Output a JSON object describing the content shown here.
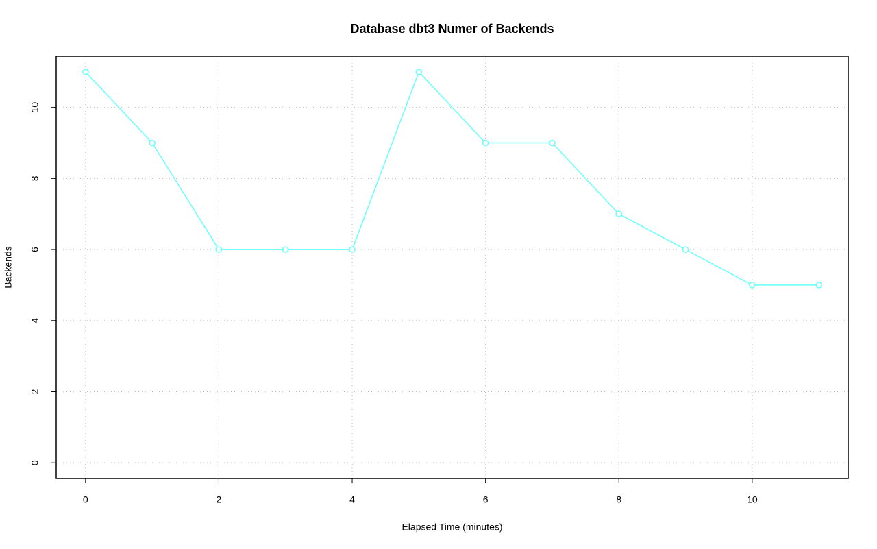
{
  "chart_data": {
    "type": "line",
    "title": "Database dbt3 Numer of Backends",
    "x_label": "Elapsed Time (minutes)",
    "y_label": "Backends",
    "x": [
      0,
      1,
      2,
      3,
      4,
      5,
      6,
      7,
      8,
      9,
      10,
      11
    ],
    "values": [
      11,
      9,
      6,
      6,
      6,
      11,
      9,
      9,
      7,
      6,
      5,
      5
    ],
    "color": "#66ffff",
    "xlim": [
      -0.44,
      11.44
    ],
    "xticks": [
      0,
      2,
      4,
      6,
      8,
      10
    ],
    "ylim": [
      -0.44,
      11.44
    ],
    "yticks": [
      0,
      2,
      4,
      6,
      8,
      10
    ],
    "grid": true
  }
}
